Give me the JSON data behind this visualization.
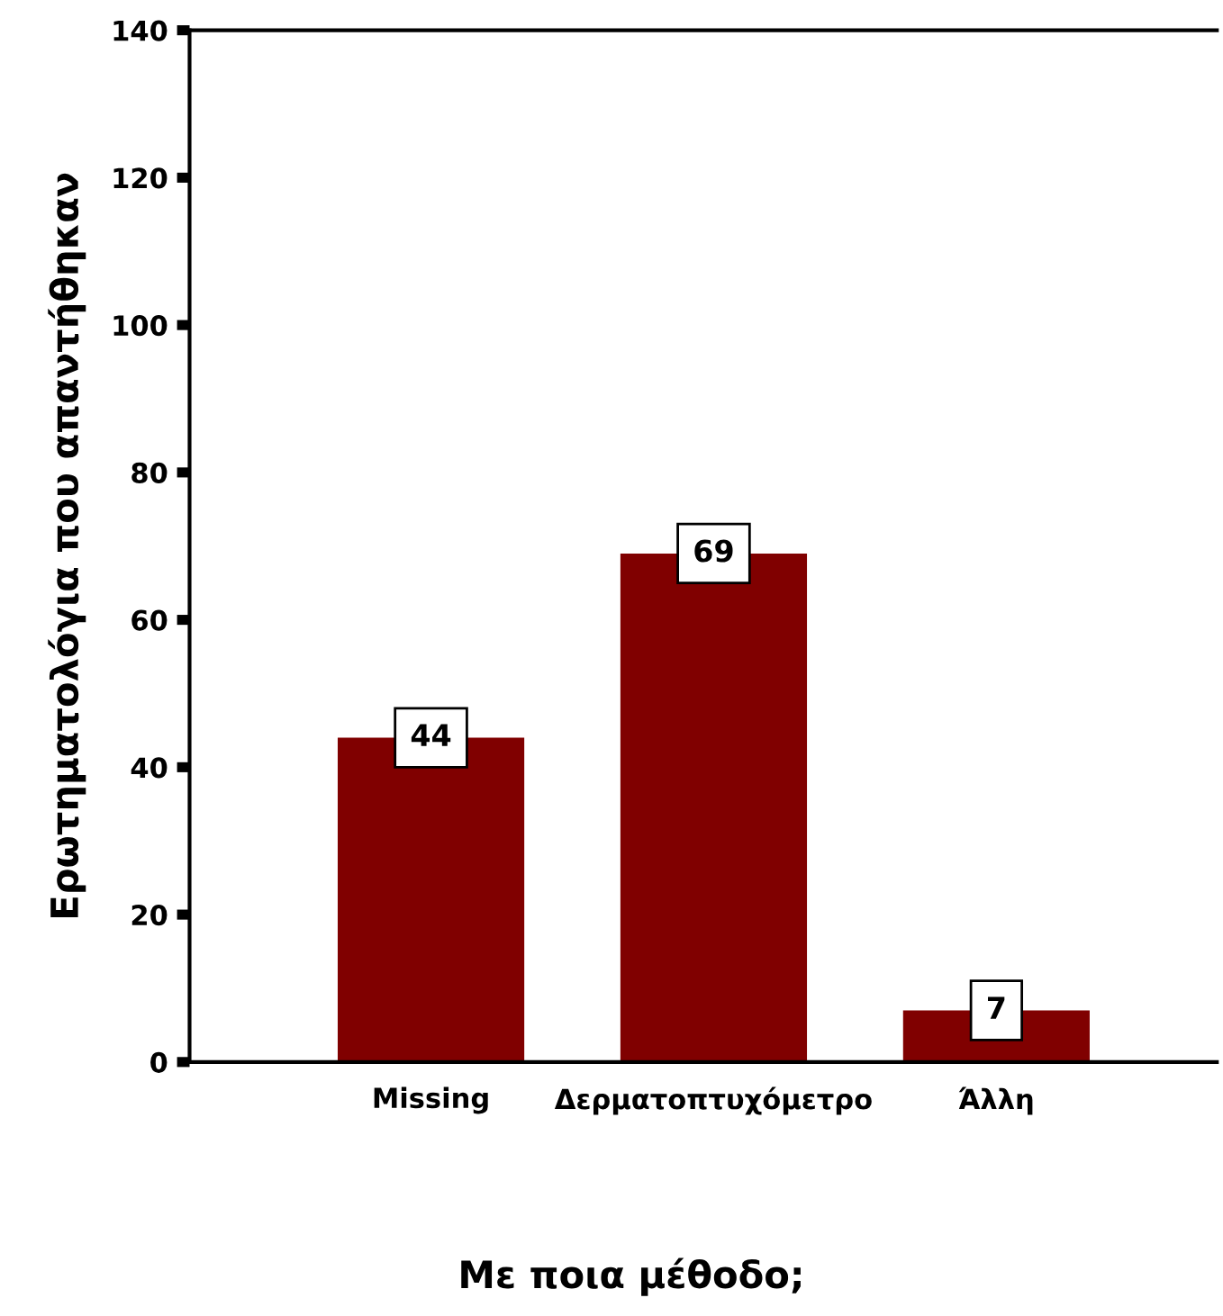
{
  "chart_data": {
    "type": "bar",
    "categories": [
      "Missing",
      "Δερματοπτυχόμετρο",
      "Άλλη"
    ],
    "values": [
      44,
      69,
      7
    ],
    "color": "#800000",
    "xlabel": "Με ποια μέθοδο;",
    "ylabel": "Ερωτηματολόγια που απαντήθηκαν",
    "ylim": [
      0,
      140
    ],
    "yticks": [
      0,
      20,
      40,
      60,
      80,
      100,
      120,
      140
    ],
    "data_labels": true,
    "grid": false,
    "legend": false
  }
}
